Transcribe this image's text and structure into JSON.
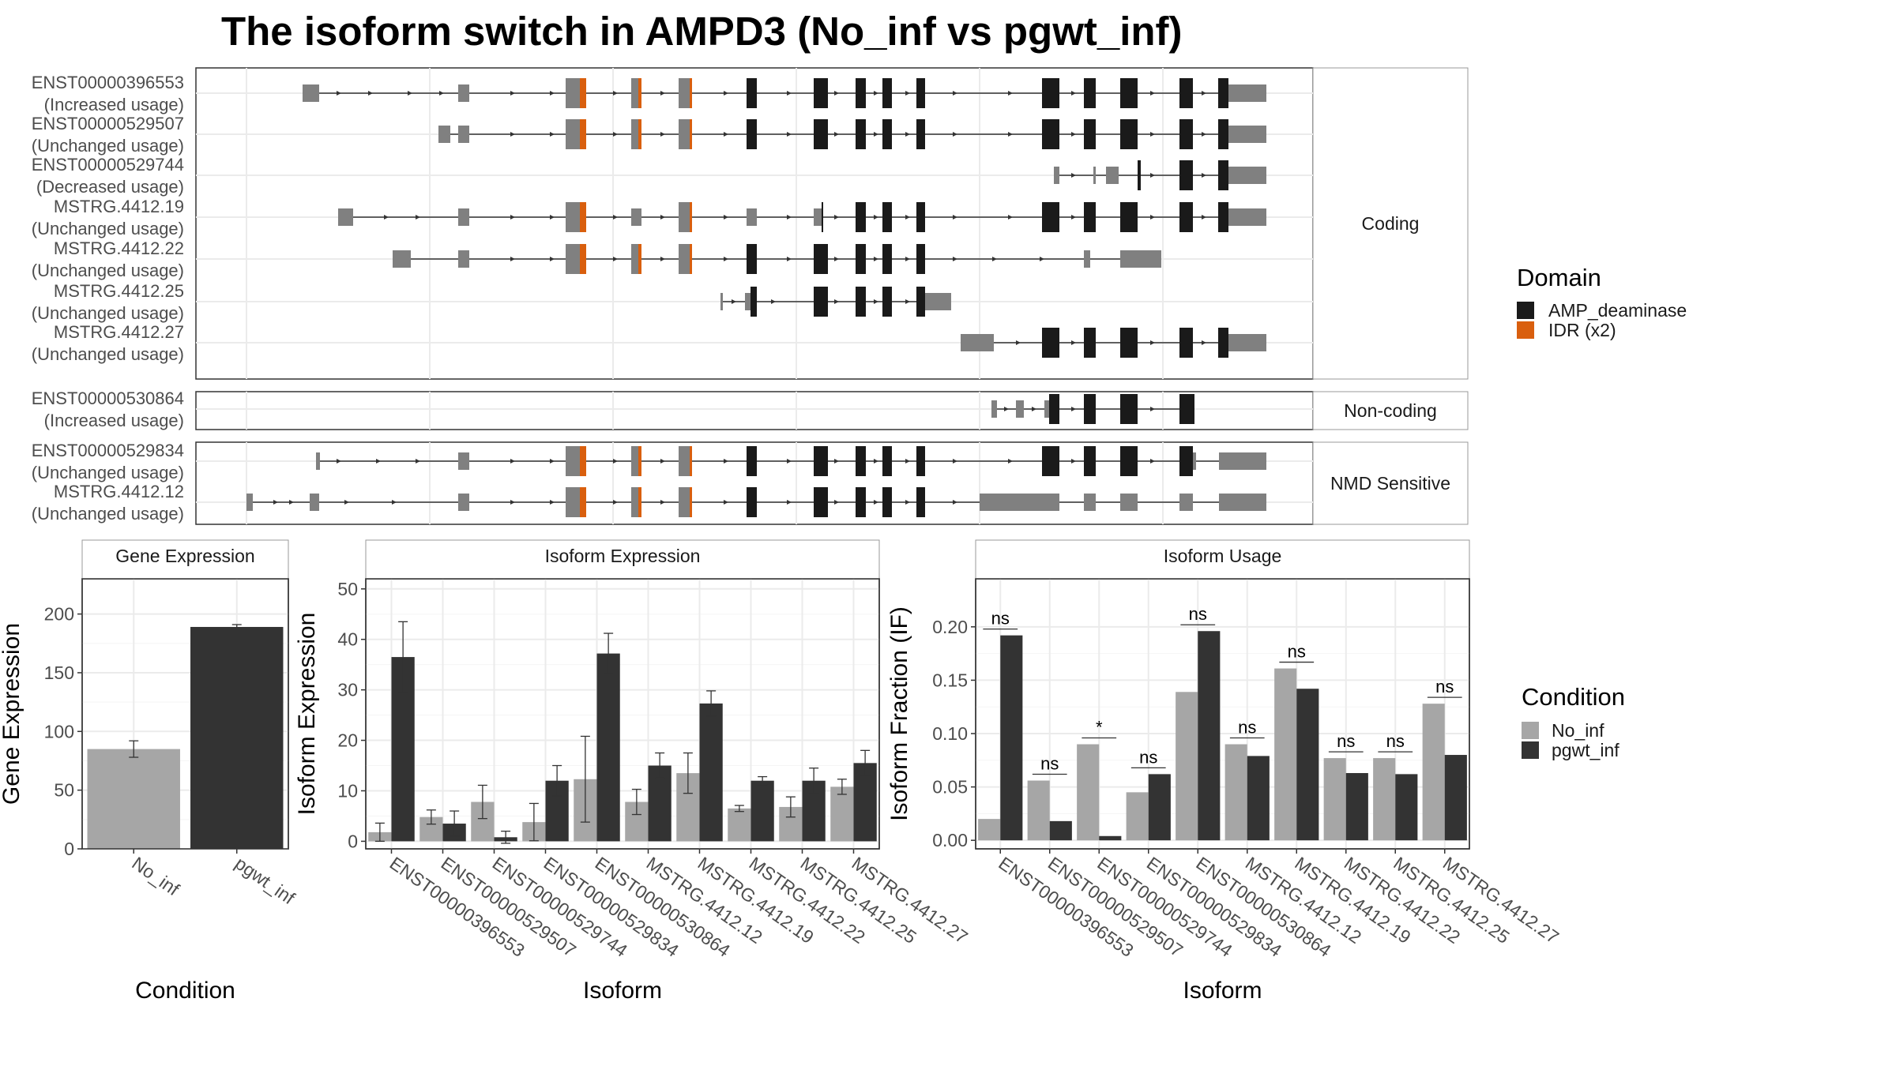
{
  "title": "The isoform switch in AMPD3 (No_inf vs pgwt_inf)",
  "structure": {
    "groups": [
      {
        "label": "Coding",
        "transcripts": [
          {
            "id": "ENST00000396553",
            "usage": "(Increased usage)"
          },
          {
            "id": "ENST00000529507",
            "usage": "(Unchanged usage)"
          },
          {
            "id": "ENST00000529744",
            "usage": "(Decreased usage)"
          },
          {
            "id": "MSTRG.4412.19",
            "usage": "(Unchanged usage)"
          },
          {
            "id": "MSTRG.4412.22",
            "usage": "(Unchanged usage)"
          },
          {
            "id": "MSTRG.4412.25",
            "usage": "(Unchanged usage)"
          },
          {
            "id": "MSTRG.4412.27",
            "usage": "(Unchanged usage)"
          }
        ]
      },
      {
        "label": "Non-coding",
        "transcripts": [
          {
            "id": "ENST00000530864",
            "usage": "(Increased usage)"
          }
        ]
      },
      {
        "label": "NMD Sensitive",
        "transcripts": [
          {
            "id": "ENST00000529834",
            "usage": "(Unchanged usage)"
          },
          {
            "id": "MSTRG.4412.12",
            "usage": "(Unchanged usage)"
          }
        ]
      }
    ],
    "legend": {
      "title": "Domain",
      "items": [
        {
          "label": "AMP_deaminase",
          "color": "#1a1a1a"
        },
        {
          "label": "IDR (x2)",
          "color": "#d95f0e"
        }
      ]
    }
  },
  "chart_data": [
    {
      "type": "bar",
      "panel_title": "Gene Expression",
      "xlabel": "Condition",
      "ylabel": "Gene Expression",
      "categories": [
        "No_inf",
        "pgwt_inf"
      ],
      "values": [
        85,
        189
      ],
      "errors": [
        7,
        2
      ],
      "ylim": [
        0,
        230
      ],
      "yticks": [
        0,
        50,
        100,
        150,
        200
      ]
    },
    {
      "type": "bar",
      "panel_title": "Isoform Expression",
      "xlabel": "Isoform",
      "ylabel": "Isoform Expression",
      "categories": [
        "ENST00000396553",
        "ENST00000529507",
        "ENST00000529744",
        "ENST00000529834",
        "ENST00000530864",
        "MSTRG.4412.12",
        "MSTRG.4412.19",
        "MSTRG.4412.22",
        "MSTRG.4412.25",
        "MSTRG.4412.27"
      ],
      "series": [
        {
          "name": "No_inf",
          "values": [
            1.8,
            4.8,
            7.8,
            3.8,
            12.3,
            7.8,
            13.5,
            6.5,
            6.8,
            10.8
          ],
          "errors": [
            1.8,
            1.4,
            3.3,
            3.7,
            8.5,
            2.5,
            4.0,
            0.6,
            2.0,
            1.5
          ]
        },
        {
          "name": "pgwt_inf",
          "values": [
            36.5,
            3.5,
            0.8,
            12.0,
            37.2,
            15.0,
            27.3,
            12.0,
            12.0,
            15.5
          ],
          "errors": [
            7.0,
            2.5,
            1.2,
            3.0,
            4.0,
            2.5,
            2.5,
            0.8,
            2.5,
            2.5
          ]
        }
      ],
      "ylim": [
        -1.5,
        52
      ],
      "yticks": [
        0,
        10,
        20,
        30,
        40,
        50
      ]
    },
    {
      "type": "bar",
      "panel_title": "Isoform Usage",
      "xlabel": "Isoform",
      "ylabel": "Isoform Fraction (IF)",
      "categories": [
        "ENST00000396553",
        "ENST00000529507",
        "ENST00000529744",
        "ENST00000529834",
        "ENST00000530864",
        "MSTRG.4412.12",
        "MSTRG.4412.19",
        "MSTRG.4412.22",
        "MSTRG.4412.25",
        "MSTRG.4412.27"
      ],
      "series": [
        {
          "name": "No_inf",
          "values": [
            0.02,
            0.056,
            0.09,
            0.045,
            0.139,
            0.09,
            0.161,
            0.077,
            0.077,
            0.128
          ]
        },
        {
          "name": "pgwt_inf",
          "values": [
            0.192,
            0.018,
            0.004,
            0.062,
            0.196,
            0.079,
            0.142,
            0.063,
            0.062,
            0.08
          ]
        }
      ],
      "significance": [
        "ns",
        "ns",
        "*",
        "ns",
        "ns",
        "ns",
        "ns",
        "ns",
        "ns",
        "ns"
      ],
      "ylim": [
        -0.008,
        0.245
      ],
      "yticks": [
        0.0,
        0.05,
        0.1,
        0.15,
        0.2
      ],
      "ytick_labels": [
        "0.00",
        "0.05",
        "0.10",
        "0.15",
        "0.20"
      ]
    }
  ],
  "condition_legend": {
    "title": "Condition",
    "items": [
      {
        "label": "No_inf",
        "color": "#a6a6a6"
      },
      {
        "label": "pgwt_inf",
        "color": "#333333"
      }
    ]
  }
}
